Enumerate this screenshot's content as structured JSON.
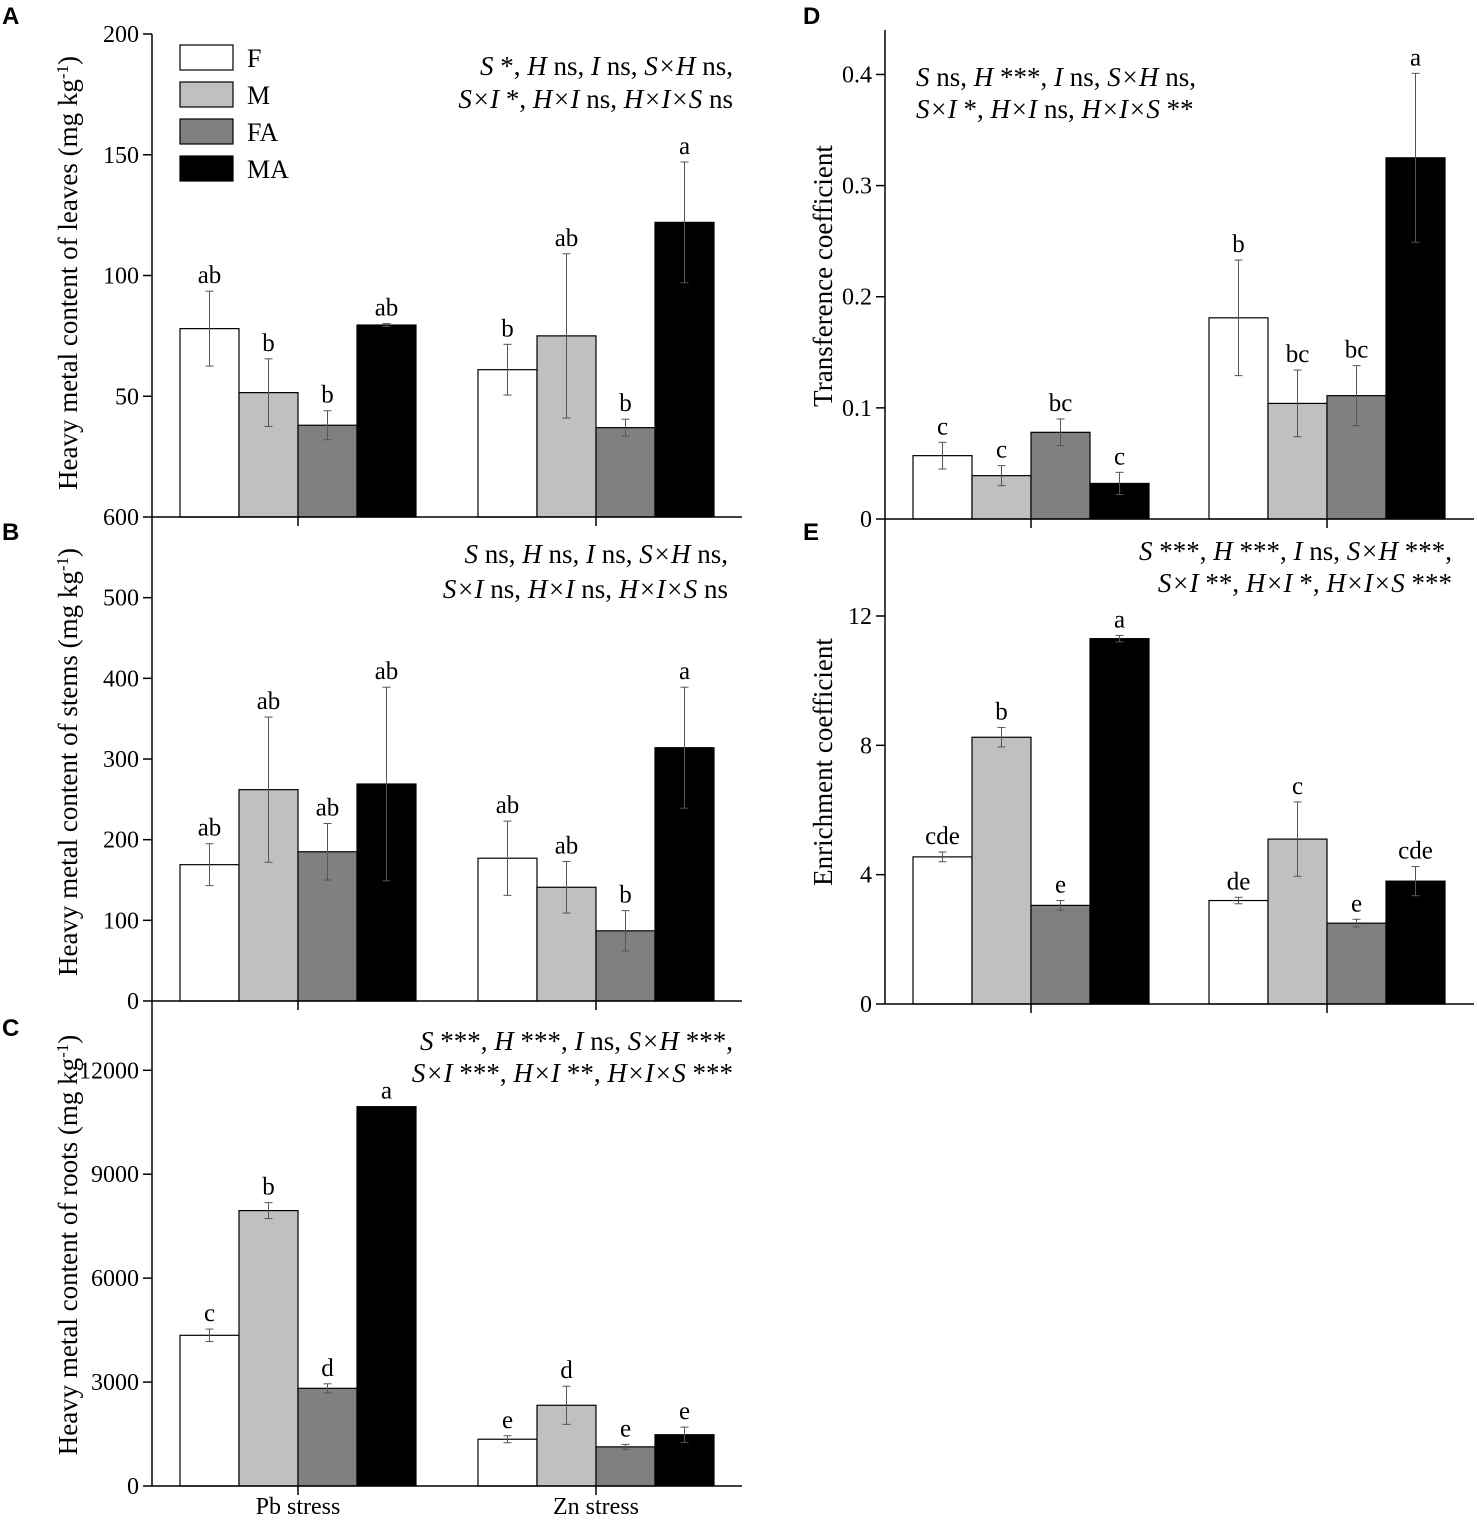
{
  "colors": {
    "F": "#ffffff",
    "M": "#c0c0c0",
    "FA": "#808080",
    "MA": "#000000"
  },
  "chart_data": [
    {
      "id": "A",
      "type": "bar",
      "panel_label": "A",
      "categories": [
        "Pb stress",
        "Zn stress"
      ],
      "ylabel": "Heavy metal content of leaves (mg kg",
      "ylabel_sup": "-1",
      "ylim": [
        0,
        200
      ],
      "yticks": [
        50,
        100,
        150,
        200
      ],
      "stats": [
        [
          [
            "S",
            " *, "
          ],
          [
            "H",
            " ns, "
          ],
          [
            "I",
            " ns, "
          ],
          [
            "S×H",
            " ns,"
          ]
        ],
        [
          [
            "S×I",
            " *, "
          ],
          [
            "H×I",
            " ns, "
          ],
          [
            "H×I×S",
            " ns"
          ]
        ]
      ],
      "legend": [
        "F",
        "M",
        "FA",
        "MA"
      ],
      "series": [
        {
          "name": "F",
          "values": [
            78,
            61
          ],
          "errors": [
            15.5,
            10.5
          ],
          "letters": [
            "ab",
            "b"
          ]
        },
        {
          "name": "M",
          "values": [
            51.5,
            75
          ],
          "errors": [
            14,
            34
          ],
          "letters": [
            "b",
            "ab"
          ]
        },
        {
          "name": "FA",
          "values": [
            38,
            37
          ],
          "errors": [
            6,
            3.5
          ],
          "letters": [
            "b",
            "b"
          ]
        },
        {
          "name": "MA",
          "values": [
            79.5,
            122
          ],
          "errors": [
            0.6,
            25
          ],
          "letters": [
            "ab",
            "a"
          ]
        }
      ]
    },
    {
      "id": "B",
      "type": "bar",
      "panel_label": "B",
      "categories": [
        "Pb stress",
        "Zn stress"
      ],
      "ylabel": "Heavy metal content of stems (mg kg",
      "ylabel_sup": "-1",
      "ylim": [
        0,
        600
      ],
      "yticks": [
        0,
        100,
        200,
        300,
        400,
        500,
        600
      ],
      "stats": [
        [
          [
            "S",
            " ns, "
          ],
          [
            "H",
            " ns, "
          ],
          [
            "I",
            " ns, "
          ],
          [
            "S×H",
            " ns,"
          ]
        ],
        [
          [
            "S×I",
            " ns, "
          ],
          [
            "H×I",
            " ns, "
          ],
          [
            "H×I×S",
            " ns"
          ]
        ]
      ],
      "series": [
        {
          "name": "F",
          "values": [
            169,
            177
          ],
          "errors": [
            26,
            46
          ],
          "letters": [
            "ab",
            "ab"
          ]
        },
        {
          "name": "M",
          "values": [
            262,
            141
          ],
          "errors": [
            90,
            32
          ],
          "letters": [
            "ab",
            "ab"
          ]
        },
        {
          "name": "FA",
          "values": [
            185,
            87
          ],
          "errors": [
            35,
            25
          ],
          "letters": [
            "ab",
            "b"
          ]
        },
        {
          "name": "MA",
          "values": [
            269,
            314
          ],
          "errors": [
            120,
            75
          ],
          "letters": [
            "ab",
            "a"
          ]
        }
      ]
    },
    {
      "id": "C",
      "type": "bar",
      "panel_label": "C",
      "categories": [
        "Pb stress",
        "Zn stress"
      ],
      "ylabel": "Heavy metal content of roots (mg kg",
      "ylabel_sup": "-1",
      "ylim": [
        0,
        14000
      ],
      "yticks": [
        0,
        3000,
        6000,
        9000,
        12000
      ],
      "stats": [
        [
          [
            "S",
            " ***, "
          ],
          [
            "H",
            " ***, "
          ],
          [
            "I",
            " ns, "
          ],
          [
            "S×H",
            " ***,"
          ]
        ],
        [
          [
            "S×I",
            " ***, "
          ],
          [
            "H×I",
            " **, "
          ],
          [
            "H×I×S",
            " ***"
          ]
        ]
      ],
      "series": [
        {
          "name": "F",
          "values": [
            4350,
            1350
          ],
          "errors": [
            180,
            100
          ],
          "letters": [
            "c",
            "e"
          ]
        },
        {
          "name": "M",
          "values": [
            7950,
            2330
          ],
          "errors": [
            230,
            550
          ],
          "letters": [
            "b",
            "d"
          ]
        },
        {
          "name": "FA",
          "values": [
            2820,
            1130
          ],
          "errors": [
            130,
            70
          ],
          "letters": [
            "d",
            "e"
          ]
        },
        {
          "name": "MA",
          "values": [
            10950,
            1480
          ],
          "errors": [
            0,
            220
          ],
          "letters": [
            "a",
            "e"
          ]
        }
      ]
    },
    {
      "id": "D",
      "type": "bar",
      "panel_label": "D",
      "categories": [
        "Pb stress",
        "Zn stress"
      ],
      "ylabel": "Transference coefficient",
      "ylim": [
        0,
        0.44
      ],
      "yticks": [
        0,
        0.1,
        0.2,
        0.3,
        0.4
      ],
      "stats": [
        [
          [
            "S",
            " ns, "
          ],
          [
            "H",
            " ***, "
          ],
          [
            "I",
            " ns, "
          ],
          [
            "S×H",
            " ns,"
          ]
        ],
        [
          [
            "S×I",
            " *, "
          ],
          [
            "H×I",
            " ns, "
          ],
          [
            "H×I×S",
            " **"
          ]
        ]
      ],
      "series": [
        {
          "name": "F",
          "values": [
            0.057,
            0.181
          ],
          "errors": [
            0.012,
            0.052
          ],
          "letters": [
            "c",
            "b"
          ]
        },
        {
          "name": "M",
          "values": [
            0.039,
            0.104
          ],
          "errors": [
            0.009,
            0.03
          ],
          "letters": [
            "c",
            "bc"
          ]
        },
        {
          "name": "FA",
          "values": [
            0.078,
            0.111
          ],
          "errors": [
            0.012,
            0.027
          ],
          "letters": [
            "bc",
            "bc"
          ]
        },
        {
          "name": "MA",
          "values": [
            0.032,
            0.325
          ],
          "errors": [
            0.01,
            0.076
          ],
          "letters": [
            "c",
            "a"
          ]
        }
      ]
    },
    {
      "id": "E",
      "type": "bar",
      "panel_label": "E",
      "categories": [
        "Pb stress",
        "Zn stress"
      ],
      "ylabel": "Enrichment coefficient",
      "ylim": [
        0,
        15
      ],
      "yticks": [
        0,
        4,
        8,
        12
      ],
      "stats": [
        [
          [
            "S",
            " ***, "
          ],
          [
            "H",
            " ***, "
          ],
          [
            "I",
            " ns, "
          ],
          [
            "S×H",
            " ***,"
          ]
        ],
        [
          [
            "S×I",
            " **, "
          ],
          [
            "H×I",
            " *, "
          ],
          [
            "H×I×S",
            " ***"
          ]
        ]
      ],
      "series": [
        {
          "name": "F",
          "values": [
            4.55,
            3.2
          ],
          "errors": [
            0.15,
            0.1
          ],
          "letters": [
            "cde",
            "de"
          ]
        },
        {
          "name": "M",
          "values": [
            8.25,
            5.1
          ],
          "errors": [
            0.3,
            1.15
          ],
          "letters": [
            "b",
            "c"
          ]
        },
        {
          "name": "FA",
          "values": [
            3.05,
            2.5
          ],
          "errors": [
            0.15,
            0.12
          ],
          "letters": [
            "e",
            "e"
          ]
        },
        {
          "name": "MA",
          "values": [
            11.3,
            3.8
          ],
          "errors": [
            0.1,
            0.45
          ],
          "letters": [
            "a",
            "cde"
          ]
        }
      ]
    }
  ]
}
